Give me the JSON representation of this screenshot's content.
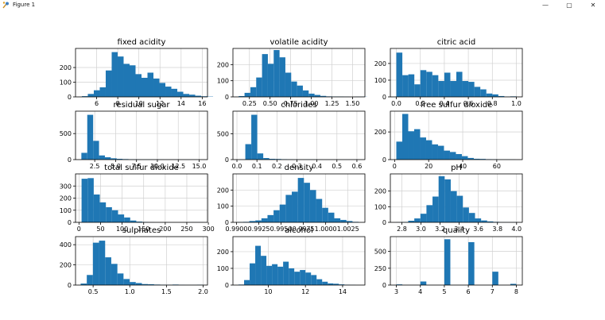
{
  "window": {
    "title": "Figure 1",
    "controls": {
      "minimize": "—",
      "maximize": "▢",
      "close": "✕"
    }
  },
  "colors": {
    "bar": "#1f77b4",
    "grid": "#d0d0d0",
    "axis": "#000000"
  },
  "chart_data": [
    {
      "type": "bar",
      "title": "fixed acidity",
      "xlim": [
        4.0,
        16.5
      ],
      "ylim": [
        0,
        330
      ],
      "xticks": [
        6,
        8,
        10,
        12,
        14,
        16
      ],
      "xtick_labels": [
        "6",
        "8",
        "10",
        "12",
        "14",
        "16"
      ],
      "yticks": [
        0,
        100,
        200
      ],
      "ytick_labels": [
        "0",
        "100",
        "200"
      ],
      "bin_start": 4.6,
      "bin_width": 0.565,
      "values": [
        5,
        20,
        45,
        65,
        180,
        305,
        275,
        225,
        215,
        155,
        130,
        165,
        125,
        95,
        70,
        55,
        35,
        20,
        15,
        8,
        4,
        2
      ]
    },
    {
      "type": "bar",
      "title": "volatile acidity",
      "xlim": [
        0.05,
        1.65
      ],
      "ylim": [
        0,
        300
      ],
      "xticks": [
        0.25,
        0.5,
        0.75,
        1.0,
        1.25,
        1.5
      ],
      "xtick_labels": [
        "0.25",
        "0.50",
        "0.75",
        "1.00",
        "1.25",
        "1.50"
      ],
      "yticks": [
        0,
        100,
        200
      ],
      "ytick_labels": [
        "0",
        "100",
        "200"
      ],
      "bin_start": 0.12,
      "bin_width": 0.0707,
      "values": [
        5,
        25,
        60,
        120,
        265,
        205,
        290,
        245,
        150,
        95,
        70,
        40,
        20,
        12,
        6,
        3,
        2,
        2,
        1,
        0,
        1,
        1
      ]
    },
    {
      "type": "bar",
      "title": "citric acid",
      "xlim": [
        -0.05,
        1.05
      ],
      "ylim": [
        0,
        290
      ],
      "xticks": [
        0.0,
        0.2,
        0.4,
        0.6,
        0.8,
        1.0
      ],
      "xtick_labels": [
        "0.0",
        "0.2",
        "0.4",
        "0.6",
        "0.8",
        "1.0"
      ],
      "yticks": [
        0,
        100,
        200
      ],
      "ytick_labels": [
        "0",
        "100",
        "200"
      ],
      "bin_start": 0.0,
      "bin_width": 0.05,
      "values": [
        265,
        130,
        135,
        75,
        160,
        150,
        130,
        95,
        145,
        95,
        150,
        95,
        90,
        60,
        45,
        20,
        15,
        5,
        1,
        3
      ]
    },
    {
      "type": "bar",
      "title": "residual sugar",
      "xlim": [
        0.2,
        16.0
      ],
      "ylim": [
        0,
        930
      ],
      "xticks": [
        2.5,
        5.0,
        7.5,
        10.0,
        12.5,
        15.0
      ],
      "xtick_labels": [
        "2.5",
        "5.0",
        "7.5",
        "10.0",
        "12.5",
        "15.0"
      ],
      "yticks": [
        0,
        500
      ],
      "ytick_labels": [
        "0",
        "500"
      ],
      "bin_start": 0.9,
      "bin_width": 0.7045,
      "values": [
        130,
        860,
        360,
        80,
        45,
        25,
        15,
        10,
        6,
        5,
        3,
        3,
        2,
        2,
        1,
        1,
        1,
        1,
        1,
        1
      ]
    },
    {
      "type": "bar",
      "title": "chlorides",
      "xlim": [
        -0.02,
        0.64
      ],
      "ylim": [
        0,
        940
      ],
      "xticks": [
        0.0,
        0.1,
        0.2,
        0.3,
        0.4,
        0.5,
        0.6
      ],
      "xtick_labels": [
        "0.0",
        "0.1",
        "0.2",
        "0.3",
        "0.4",
        "0.5",
        "0.6"
      ],
      "yticks": [
        0,
        500
      ],
      "ytick_labels": [
        "0",
        "500"
      ],
      "bin_start": 0.012,
      "bin_width": 0.0299,
      "values": [
        2,
        300,
        870,
        120,
        30,
        15,
        12,
        8,
        5,
        3,
        2,
        3,
        3,
        2,
        1,
        1,
        1,
        1,
        1,
        1
      ]
    },
    {
      "type": "bar",
      "title": "free sulfur dioxide",
      "xlim": [
        -2.5,
        75
      ],
      "ylim": [
        0,
        350
      ],
      "xticks": [
        0,
        20,
        40,
        60
      ],
      "xtick_labels": [
        "0",
        "20",
        "40",
        "60"
      ],
      "yticks": [
        0,
        200
      ],
      "ytick_labels": [
        "0",
        "200"
      ],
      "bin_start": 1.0,
      "bin_width": 3.5,
      "values": [
        130,
        330,
        205,
        220,
        160,
        140,
        110,
        100,
        65,
        55,
        40,
        25,
        12,
        6,
        5,
        3,
        2,
        1,
        1,
        1
      ]
    },
    {
      "type": "bar",
      "title": "total sulfur dioxide",
      "xlim": [
        -8,
        298
      ],
      "ylim": [
        0,
        400
      ],
      "xticks": [
        0,
        50,
        100,
        150,
        200,
        250,
        300
      ],
      "xtick_labels": [
        "0",
        "50",
        "100",
        "150",
        "200",
        "250",
        "300"
      ],
      "yticks": [
        0,
        100,
        200,
        300
      ],
      "ytick_labels": [
        "0",
        "100",
        "200",
        "300"
      ],
      "bin_start": 6.0,
      "bin_width": 14.1,
      "values": [
        360,
        365,
        230,
        165,
        125,
        100,
        65,
        40,
        15,
        6,
        3,
        1,
        0,
        0,
        0,
        0,
        0,
        0,
        1,
        1
      ]
    },
    {
      "type": "bar",
      "title": "density",
      "xlim": [
        0.9896,
        1.0044
      ],
      "ylim": [
        0,
        300
      ],
      "xticks": [
        0.99,
        0.9925,
        0.995,
        0.9975,
        1.0,
        1.0025
      ],
      "xtick_labels": [
        "0.9900",
        "0.9925",
        "0.9950",
        "0.9975",
        "1.0000",
        "1.0025"
      ],
      "yticks": [
        0,
        100,
        200
      ],
      "ytick_labels": [
        "0",
        "100",
        "200"
      ],
      "bin_start": 0.99007,
      "bin_width": 0.000681,
      "values": [
        2,
        3,
        8,
        12,
        25,
        45,
        75,
        110,
        170,
        190,
        275,
        245,
        200,
        145,
        90,
        60,
        25,
        15,
        8,
        3
      ]
    },
    {
      "type": "bar",
      "title": "pH",
      "xlim": [
        2.68,
        4.06
      ],
      "ylim": [
        0,
        310
      ],
      "xticks": [
        2.8,
        3.0,
        3.2,
        3.4,
        3.6,
        3.8,
        4.0
      ],
      "xtick_labels": [
        "2.8",
        "3.0",
        "3.2",
        "3.4",
        "3.6",
        "3.8",
        "4.0"
      ],
      "yticks": [
        0,
        100,
        200
      ],
      "ytick_labels": [
        "0",
        "100",
        "200"
      ],
      "bin_start": 2.74,
      "bin_width": 0.0635,
      "values": [
        1,
        2,
        10,
        25,
        55,
        110,
        165,
        295,
        275,
        200,
        170,
        95,
        60,
        25,
        12,
        6,
        3,
        1,
        1,
        1
      ]
    },
    {
      "type": "bar",
      "title": "sulphates",
      "xlim": [
        0.26,
        2.06
      ],
      "ylim": [
        0,
        480
      ],
      "xticks": [
        0.5,
        1.0,
        1.5,
        2.0
      ],
      "xtick_labels": [
        "0.5",
        "1.0",
        "1.5",
        "2.0"
      ],
      "yticks": [
        0,
        200,
        400
      ],
      "ytick_labels": [
        "0",
        "200",
        "400"
      ],
      "bin_start": 0.33,
      "bin_width": 0.0835,
      "values": [
        15,
        100,
        420,
        440,
        275,
        210,
        115,
        60,
        30,
        20,
        10,
        8,
        5,
        3,
        2,
        5,
        2,
        1,
        1,
        3
      ]
    },
    {
      "type": "bar",
      "title": "alcohol",
      "xlim": [
        8.1,
        15.2
      ],
      "ylim": [
        0,
        290
      ],
      "xticks": [
        10,
        12,
        14
      ],
      "xtick_labels": [
        "10",
        "12",
        "14"
      ],
      "yticks": [
        0,
        100,
        200
      ],
      "ytick_labels": [
        "0",
        "100",
        "200"
      ],
      "bin_start": 8.4,
      "bin_width": 0.3,
      "values": [
        3,
        30,
        130,
        235,
        175,
        115,
        125,
        110,
        140,
        100,
        80,
        90,
        75,
        60,
        35,
        20,
        10,
        8,
        4,
        2,
        1
      ]
    },
    {
      "type": "bar",
      "title": "quality",
      "xlim": [
        2.75,
        8.25
      ],
      "ylim": [
        0,
        720
      ],
      "xticks": [
        3,
        4,
        5,
        6,
        7,
        8
      ],
      "xtick_labels": [
        "3",
        "4",
        "5",
        "6",
        "7",
        "8"
      ],
      "yticks": [
        0,
        250,
        500
      ],
      "ytick_labels": [
        "0",
        "250",
        "500"
      ],
      "bin_start": 3.0,
      "bin_width": 0.25,
      "values": [
        10,
        0,
        0,
        0,
        53,
        0,
        0,
        0,
        681,
        0,
        0,
        0,
        638,
        0,
        0,
        0,
        199,
        0,
        0,
        18
      ]
    }
  ]
}
